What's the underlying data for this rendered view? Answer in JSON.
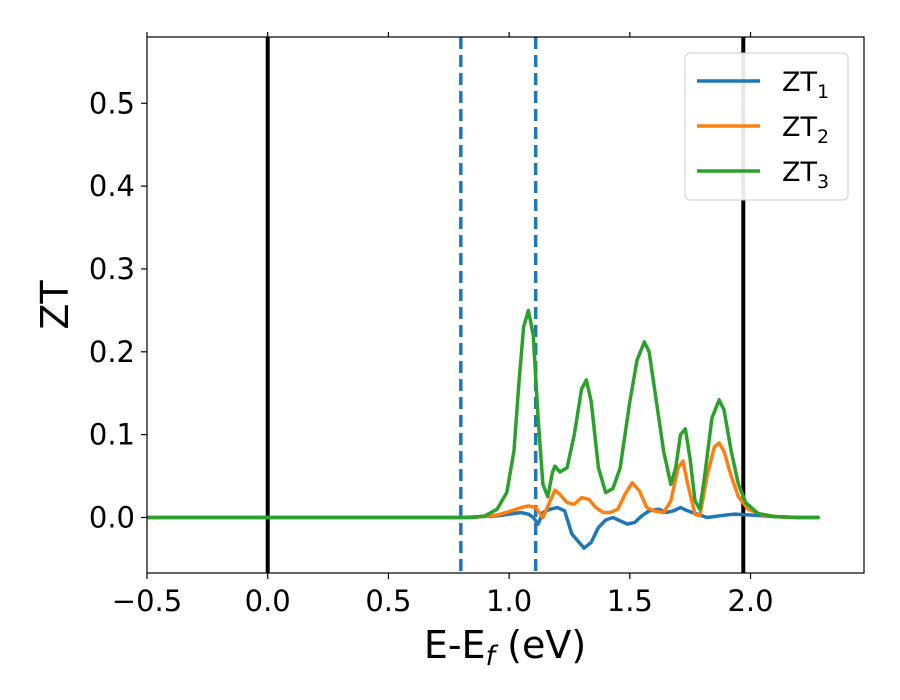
{
  "chart_data": {
    "type": "line",
    "xlabel": "E-E$_f$ (eV)",
    "ylabel": "ZT",
    "xlim": [
      -0.5,
      2.47
    ],
    "ylim": [
      -0.067,
      0.58
    ],
    "xticks": [
      -0.5,
      0.0,
      0.5,
      1.0,
      1.5,
      2.0
    ],
    "xtick_labels": [
      "−0.5",
      "0.0",
      "0.5",
      "1.0",
      "1.5",
      "2.0"
    ],
    "yticks": [
      0.0,
      0.1,
      0.2,
      0.3,
      0.4,
      0.5
    ],
    "ytick_labels": [
      "0.0",
      "0.1",
      "0.2",
      "0.3",
      "0.4",
      "0.5"
    ],
    "legend_position": "top-right",
    "vertical_lines": [
      {
        "x": 0.0,
        "style": "solid",
        "color": "#000000"
      },
      {
        "x": 1.97,
        "style": "solid",
        "color": "#000000"
      },
      {
        "x": 0.8,
        "style": "dashed",
        "color": "#1f77b4"
      },
      {
        "x": 1.11,
        "style": "dashed",
        "color": "#1f77b4"
      }
    ],
    "series": [
      {
        "name": "ZT1",
        "legend_main": "ZT",
        "legend_sub": "1",
        "color": "#1f77b4",
        "points": [
          [
            -0.5,
            0.0
          ],
          [
            0.5,
            0.0
          ],
          [
            0.8,
            0.0
          ],
          [
            0.95,
            0.002
          ],
          [
            1.0,
            0.004
          ],
          [
            1.05,
            0.006
          ],
          [
            1.08,
            0.004
          ],
          [
            1.1,
            0.0
          ],
          [
            1.12,
            -0.008
          ],
          [
            1.14,
            0.006
          ],
          [
            1.17,
            0.01
          ],
          [
            1.2,
            0.012
          ],
          [
            1.23,
            0.008
          ],
          [
            1.26,
            -0.02
          ],
          [
            1.29,
            -0.03
          ],
          [
            1.31,
            -0.037
          ],
          [
            1.34,
            -0.03
          ],
          [
            1.37,
            -0.012
          ],
          [
            1.4,
            -0.003
          ],
          [
            1.43,
            0.0
          ],
          [
            1.46,
            -0.004
          ],
          [
            1.49,
            -0.008
          ],
          [
            1.52,
            -0.006
          ],
          [
            1.55,
            0.002
          ],
          [
            1.58,
            0.008
          ],
          [
            1.62,
            0.01
          ],
          [
            1.65,
            0.006
          ],
          [
            1.68,
            0.008
          ],
          [
            1.71,
            0.012
          ],
          [
            1.74,
            0.008
          ],
          [
            1.78,
            0.004
          ],
          [
            1.82,
            0.0
          ],
          [
            1.87,
            0.002
          ],
          [
            1.93,
            0.004
          ],
          [
            2.0,
            0.003
          ],
          [
            2.1,
            0.001
          ],
          [
            2.2,
            0.0
          ],
          [
            2.28,
            0.0
          ]
        ]
      },
      {
        "name": "ZT2",
        "legend_main": "ZT",
        "legend_sub": "2",
        "color": "#ff7f0e",
        "points": [
          [
            -0.5,
            0.0
          ],
          [
            0.85,
            0.0
          ],
          [
            0.95,
            0.003
          ],
          [
            1.0,
            0.007
          ],
          [
            1.05,
            0.012
          ],
          [
            1.08,
            0.014
          ],
          [
            1.11,
            0.012
          ],
          [
            1.14,
            0.0
          ],
          [
            1.17,
            0.02
          ],
          [
            1.19,
            0.033
          ],
          [
            1.21,
            0.028
          ],
          [
            1.24,
            0.018
          ],
          [
            1.27,
            0.016
          ],
          [
            1.3,
            0.024
          ],
          [
            1.33,
            0.022
          ],
          [
            1.36,
            0.012
          ],
          [
            1.39,
            0.006
          ],
          [
            1.42,
            0.006
          ],
          [
            1.45,
            0.01
          ],
          [
            1.48,
            0.028
          ],
          [
            1.51,
            0.042
          ],
          [
            1.54,
            0.032
          ],
          [
            1.57,
            0.012
          ],
          [
            1.6,
            0.008
          ],
          [
            1.64,
            0.006
          ],
          [
            1.67,
            0.02
          ],
          [
            1.7,
            0.06
          ],
          [
            1.72,
            0.068
          ],
          [
            1.74,
            0.04
          ],
          [
            1.77,
            0.004
          ],
          [
            1.79,
            0.002
          ],
          [
            1.82,
            0.05
          ],
          [
            1.85,
            0.085
          ],
          [
            1.87,
            0.09
          ],
          [
            1.89,
            0.08
          ],
          [
            1.92,
            0.05
          ],
          [
            1.95,
            0.025
          ],
          [
            1.99,
            0.01
          ],
          [
            2.05,
            0.003
          ],
          [
            2.15,
            0.0
          ],
          [
            2.28,
            0.0
          ]
        ]
      },
      {
        "name": "ZT3",
        "legend_main": "ZT",
        "legend_sub": "3",
        "color": "#2ca02c",
        "points": [
          [
            -0.5,
            0.0
          ],
          [
            0.85,
            0.0
          ],
          [
            0.9,
            0.002
          ],
          [
            0.95,
            0.01
          ],
          [
            0.99,
            0.03
          ],
          [
            1.02,
            0.08
          ],
          [
            1.04,
            0.16
          ],
          [
            1.06,
            0.23
          ],
          [
            1.08,
            0.25
          ],
          [
            1.1,
            0.22
          ],
          [
            1.12,
            0.12
          ],
          [
            1.14,
            0.04
          ],
          [
            1.16,
            0.025
          ],
          [
            1.18,
            0.055
          ],
          [
            1.19,
            0.062
          ],
          [
            1.21,
            0.055
          ],
          [
            1.24,
            0.06
          ],
          [
            1.27,
            0.1
          ],
          [
            1.3,
            0.155
          ],
          [
            1.32,
            0.166
          ],
          [
            1.34,
            0.14
          ],
          [
            1.37,
            0.06
          ],
          [
            1.4,
            0.03
          ],
          [
            1.43,
            0.035
          ],
          [
            1.46,
            0.06
          ],
          [
            1.5,
            0.14
          ],
          [
            1.53,
            0.19
          ],
          [
            1.56,
            0.212
          ],
          [
            1.58,
            0.2
          ],
          [
            1.61,
            0.14
          ],
          [
            1.64,
            0.08
          ],
          [
            1.67,
            0.04
          ],
          [
            1.69,
            0.06
          ],
          [
            1.71,
            0.1
          ],
          [
            1.73,
            0.107
          ],
          [
            1.75,
            0.07
          ],
          [
            1.77,
            0.02
          ],
          [
            1.79,
            0.01
          ],
          [
            1.81,
            0.05
          ],
          [
            1.84,
            0.12
          ],
          [
            1.87,
            0.142
          ],
          [
            1.89,
            0.13
          ],
          [
            1.92,
            0.08
          ],
          [
            1.95,
            0.04
          ],
          [
            1.98,
            0.018
          ],
          [
            2.03,
            0.005
          ],
          [
            2.1,
            0.001
          ],
          [
            2.2,
            0.0
          ],
          [
            2.28,
            0.0
          ]
        ]
      }
    ]
  }
}
